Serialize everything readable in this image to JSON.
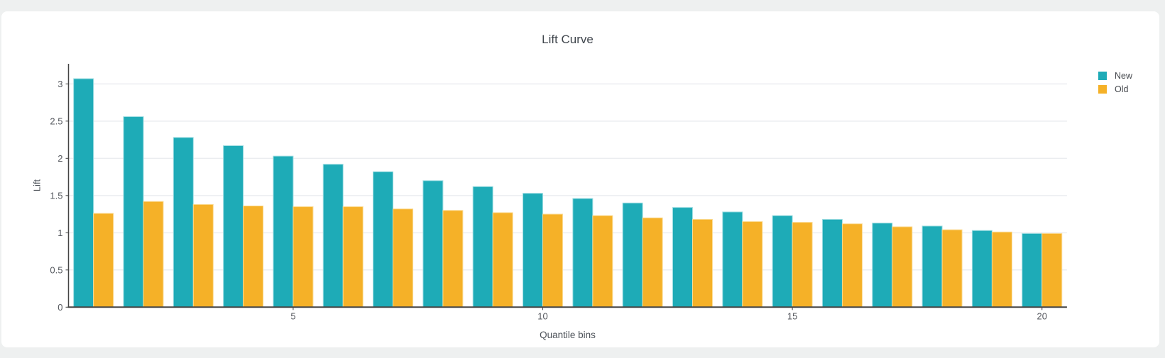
{
  "page": {
    "background_color": "#eef0f0",
    "card_color": "#ffffff"
  },
  "chart_data": {
    "type": "bar",
    "title": "Lift Curve",
    "xlabel": "Quantile bins",
    "ylabel": "Lift",
    "categories": [
      1,
      2,
      3,
      4,
      5,
      6,
      7,
      8,
      9,
      10,
      11,
      12,
      13,
      14,
      15,
      16,
      17,
      18,
      19,
      20
    ],
    "series": [
      {
        "name": "New",
        "color": "#1EABB7",
        "edge_color": "#9fdde2",
        "values": [
          3.07,
          2.56,
          2.28,
          2.17,
          2.03,
          1.92,
          1.82,
          1.7,
          1.62,
          1.53,
          1.46,
          1.4,
          1.34,
          1.28,
          1.23,
          1.18,
          1.13,
          1.09,
          1.03,
          0.99
        ]
      },
      {
        "name": "Old",
        "color": "#F5B128",
        "edge_color": "#fbdb93",
        "values": [
          1.26,
          1.42,
          1.38,
          1.36,
          1.35,
          1.35,
          1.32,
          1.3,
          1.27,
          1.25,
          1.23,
          1.2,
          1.18,
          1.15,
          1.14,
          1.12,
          1.08,
          1.04,
          1.01,
          0.99
        ]
      }
    ],
    "xlim": [
      0.5,
      20.5
    ],
    "ylim": [
      0,
      3.27
    ],
    "yticks": [
      0,
      0.5,
      1,
      1.5,
      2,
      2.5,
      3
    ],
    "ytick_labels": [
      "0",
      "0.5",
      "1",
      "1.5",
      "2",
      "2.5",
      "3"
    ],
    "xticks": [
      5,
      10,
      15,
      20
    ],
    "xtick_labels": [
      "5",
      "10",
      "15",
      "20"
    ],
    "grid": true,
    "legend_position": "top-right",
    "colors": {
      "grid": "#ebedf0",
      "axis": "#444444",
      "tick_text": "#55585e",
      "title_text": "#3f454c"
    }
  }
}
